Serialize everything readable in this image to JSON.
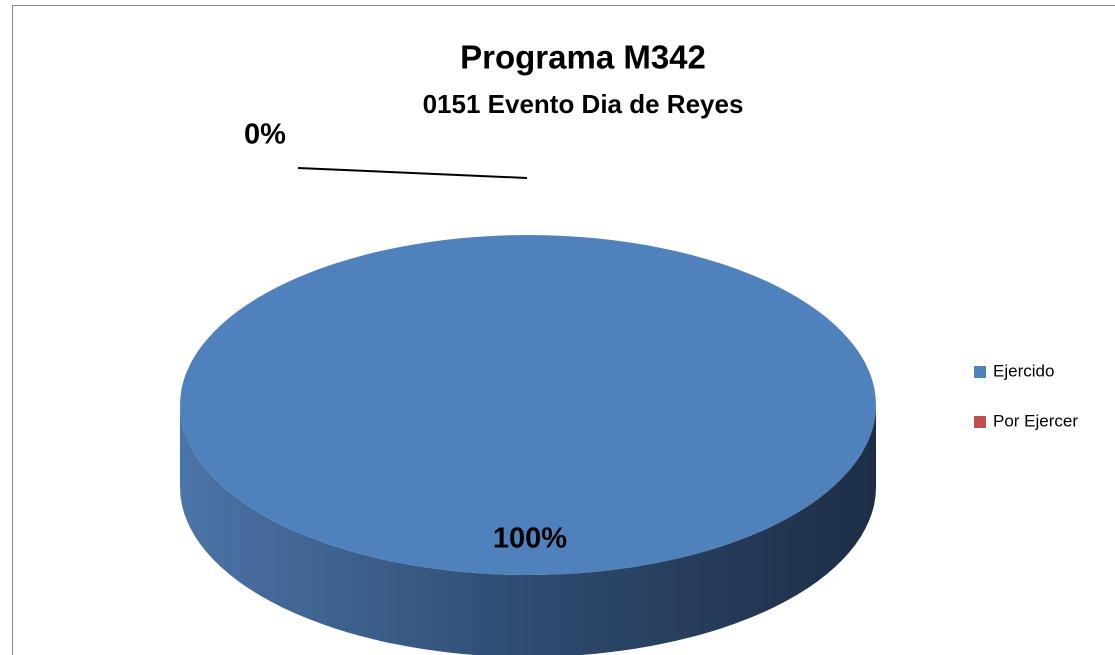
{
  "chart_data": {
    "type": "pie",
    "title": "Programa M342",
    "subtitle": "0151 Evento Dia de Reyes",
    "categories": [
      "Ejercido",
      "Por Ejercer"
    ],
    "values": [
      100,
      0
    ],
    "value_labels": [
      "100%",
      "0%"
    ],
    "colors": [
      "#4f81bd",
      "#c0504d"
    ],
    "legend": "right"
  }
}
